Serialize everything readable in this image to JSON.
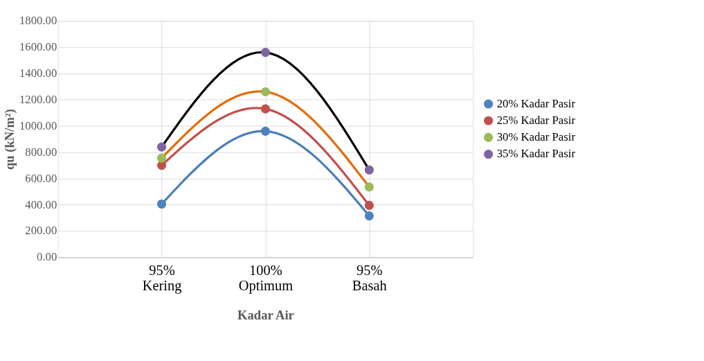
{
  "chart_data": {
    "type": "scatter",
    "xlabel": "Kadar Air",
    "ylabel": "qu (kN/m²)",
    "categories": [
      "95% Kering",
      "100% Optimum",
      "95% Basah"
    ],
    "series": [
      {
        "type": "line",
        "color": "#4a7ebb",
        "marker": "none",
        "values": [
          405,
          960,
          315
        ]
      },
      {
        "type": "line",
        "color": "#c0504d",
        "marker": "none",
        "values": [
          700,
          1130,
          395
        ]
      },
      {
        "type": "line",
        "color": "#e46c0a",
        "marker": "none",
        "values": [
          755,
          1260,
          535
        ]
      },
      {
        "type": "line",
        "color": "#000000",
        "marker": "none",
        "values": [
          840,
          1560,
          665
        ]
      },
      {
        "name": "20% Kadar Pasir",
        "color": "#4f81bd",
        "values": [
          405,
          960,
          315
        ]
      },
      {
        "name": "25% Kadar Pasir",
        "color": "#c0504d",
        "values": [
          700,
          1130,
          395
        ]
      },
      {
        "name": "30% Kadar Pasir",
        "color": "#9bbb59",
        "values": [
          755,
          1260,
          535
        ]
      },
      {
        "name": "35% Kadar Pasir",
        "color": "#8064a2",
        "values": [
          840,
          1560,
          665
        ]
      }
    ],
    "ylim": [
      0,
      1800
    ],
    "yticks": [
      {
        "value": 0,
        "label": "0.00"
      },
      {
        "value": 200,
        "label": "200.00"
      },
      {
        "value": 400,
        "label": "400.00"
      },
      {
        "value": 600,
        "label": "600.00"
      },
      {
        "value": 800,
        "label": "800.00"
      },
      {
        "value": 1000,
        "label": "1000.00"
      },
      {
        "value": 1200,
        "label": "1200.00"
      },
      {
        "value": 1400,
        "label": "1400.00"
      },
      {
        "value": 1600,
        "label": "1600.00"
      },
      {
        "value": 1800,
        "label": "1800.00"
      }
    ],
    "grid": true,
    "legend": "right",
    "marker": "circle",
    "line_style": "solid"
  }
}
